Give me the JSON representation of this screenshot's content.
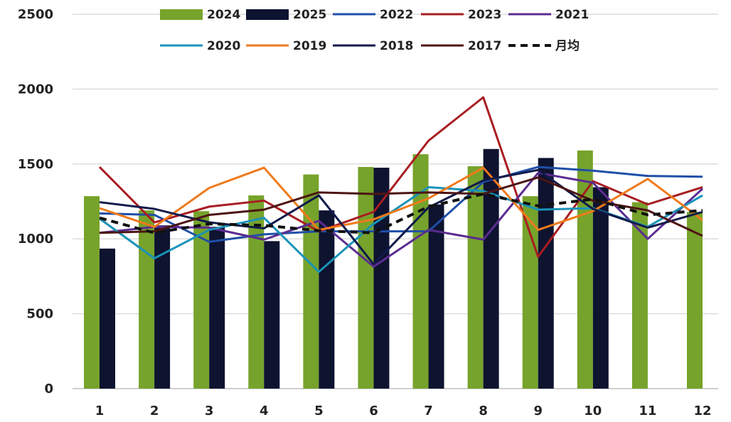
{
  "chart_data": {
    "type": "bar",
    "categories": [
      "1",
      "2",
      "3",
      "4",
      "5",
      "6",
      "7",
      "8",
      "9",
      "10",
      "11",
      "12"
    ],
    "ylim": [
      0,
      2500
    ],
    "yticks": [
      0,
      500,
      1000,
      1500,
      2000,
      2500
    ],
    "grid": true,
    "legend_position": "top",
    "bar_series": [
      {
        "name": "2024",
        "color": "#76a32b",
        "values": [
          1285,
          1190,
          1185,
          1290,
          1430,
          1480,
          1565,
          1485,
          1285,
          1590,
          1245,
          1180
        ]
      },
      {
        "name": "2025",
        "color": "#0e1330",
        "values": [
          935,
          1090,
          1080,
          985,
          1190,
          1475,
          1230,
          1600,
          1540,
          1345,
          null,
          null
        ]
      }
    ],
    "line_series": [
      {
        "name": "2022",
        "color": "#1f4fa8",
        "dashed": false,
        "values": [
          1170,
          1160,
          980,
          1030,
          1050,
          1050,
          1050,
          1380,
          1480,
          1455,
          1420,
          1415
        ]
      },
      {
        "name": "2023",
        "color": "#a81d22",
        "dashed": false,
        "values": [
          1480,
          1110,
          1215,
          1255,
          1050,
          1180,
          1655,
          1945,
          880,
          1385,
          1230,
          1345
        ]
      },
      {
        "name": "2021",
        "color": "#5b2c91",
        "dashed": false,
        "values": [
          1040,
          1080,
          1075,
          995,
          1120,
          815,
          1060,
          995,
          1440,
          1375,
          1000,
          1335
        ]
      },
      {
        "name": "2020",
        "color": "#1a93b8",
        "dashed": false,
        "values": [
          1135,
          870,
          1060,
          1140,
          780,
          1100,
          1345,
          1320,
          1195,
          1205,
          1080,
          1290
        ]
      },
      {
        "name": "2019",
        "color": "#ef7a1b",
        "dashed": false,
        "values": [
          1205,
          1080,
          1340,
          1475,
          1060,
          1130,
          1270,
          1475,
          1060,
          1185,
          1400,
          1125
        ]
      },
      {
        "name": "2018",
        "color": "#111a4a",
        "dashed": false,
        "values": [
          1245,
          1200,
          1110,
          1070,
          1290,
          830,
          1210,
          1390,
          1460,
          1200,
          1075,
          1180
        ]
      },
      {
        "name": "2017",
        "color": "#4d1414",
        "dashed": false,
        "values": [
          1040,
          1050,
          1160,
          1195,
          1310,
          1300,
          1310,
          1300,
          1410,
          1255,
          1190,
          1020
        ]
      },
      {
        "name": "月均",
        "color": "#111111",
        "dashed": true,
        "values": [
          1140,
          1040,
          1100,
          1090,
          1055,
          1040,
          1215,
          1300,
          1220,
          1265,
          1160,
          1190
        ]
      }
    ]
  }
}
